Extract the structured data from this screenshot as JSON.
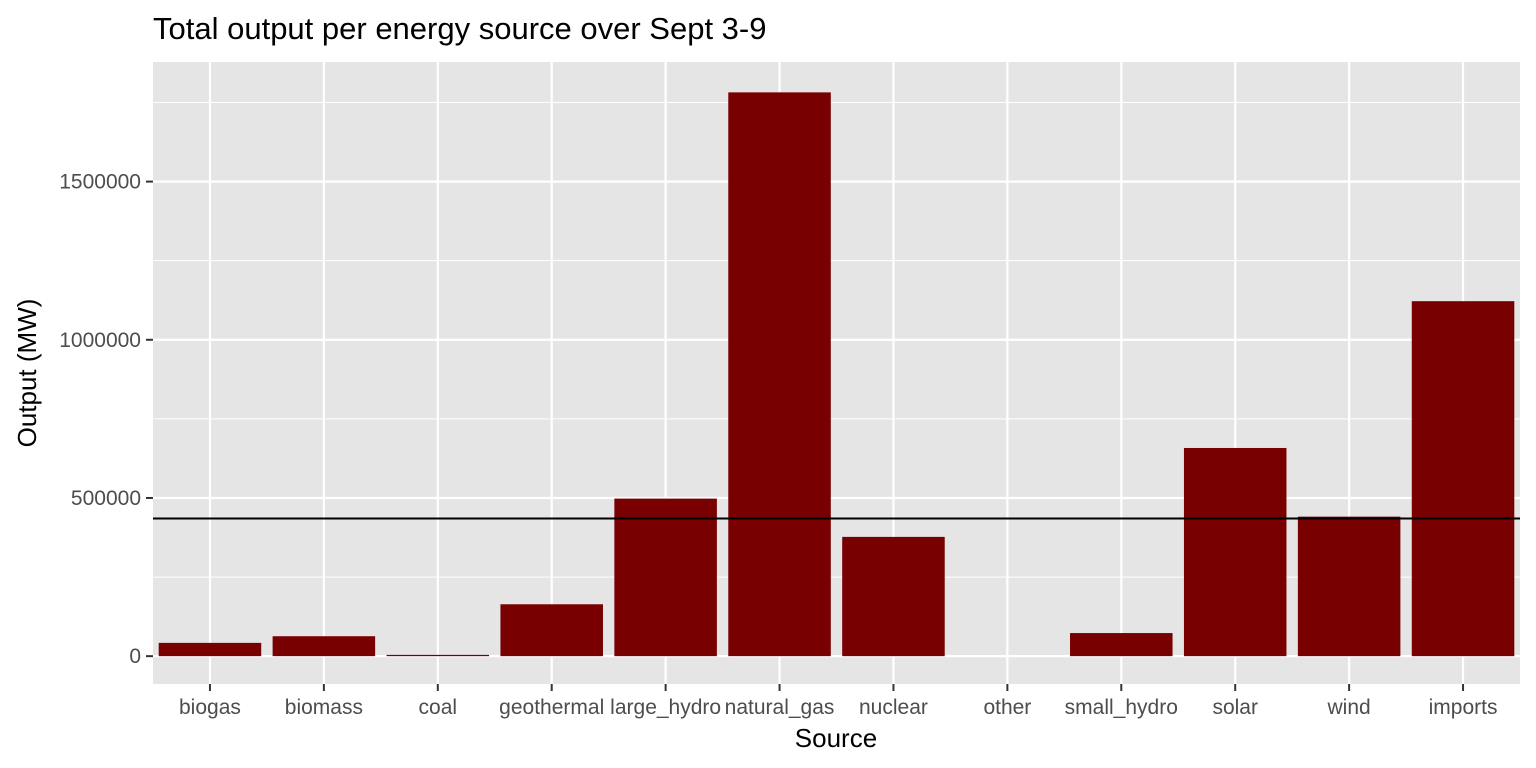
{
  "chart_data": {
    "type": "bar",
    "title": "Total output per energy source over Sept 3-9",
    "xlabel": "Source",
    "ylabel": "Output (MW)",
    "categories": [
      "biogas",
      "biomass",
      "coal",
      "geothermal",
      "large_hydro",
      "natural_gas",
      "nuclear",
      "other",
      "small_hydro",
      "solar",
      "wind",
      "imports"
    ],
    "values": [
      42000,
      63000,
      4000,
      164000,
      498000,
      1782000,
      377000,
      0,
      73000,
      658000,
      441000,
      1122000
    ],
    "reference_line": 435000,
    "ylim": [
      -88000,
      1878000
    ],
    "yticks": [
      0,
      500000,
      1000000,
      1500000
    ],
    "ytick_labels": [
      "0",
      "500000",
      "1000000",
      "1500000"
    ],
    "grid": true,
    "bar_color": "#780000",
    "panel_background": "#e5e5e5",
    "grid_color": "#ffffff",
    "reference_line_color": "#000000"
  }
}
